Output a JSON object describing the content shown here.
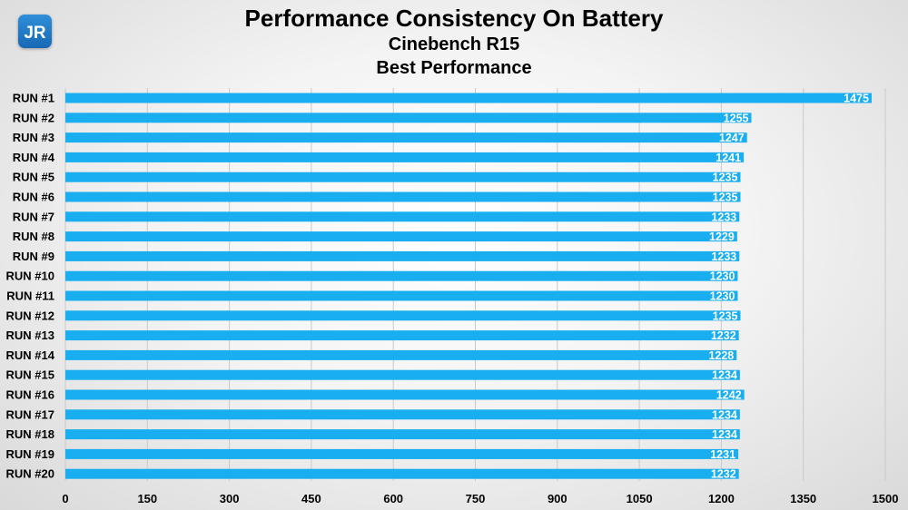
{
  "logo": {
    "text": "JR",
    "accent": "#1b74c4"
  },
  "chart_data": {
    "type": "bar",
    "orientation": "horizontal",
    "title": "Performance Consistency On Battery",
    "subtitle": "Cinebench R15",
    "subtitle2": "Best Performance",
    "categories": [
      "RUN #1",
      "RUN #2",
      "RUN #3",
      "RUN #4",
      "RUN #5",
      "RUN #6",
      "RUN #7",
      "RUN #8",
      "RUN #9",
      "RUN #10",
      "RUN #11",
      "RUN #12",
      "RUN #13",
      "RUN #14",
      "RUN #15",
      "RUN #16",
      "RUN #17",
      "RUN #18",
      "RUN #19",
      "RUN #20"
    ],
    "values": [
      1475,
      1255,
      1247,
      1241,
      1235,
      1235,
      1233,
      1229,
      1233,
      1230,
      1230,
      1235,
      1232,
      1228,
      1234,
      1242,
      1234,
      1234,
      1231,
      1232
    ],
    "xlim": [
      0,
      1500
    ],
    "xticks": [
      0,
      150,
      300,
      450,
      600,
      750,
      900,
      1050,
      1200,
      1350,
      1500
    ],
    "grid": "vertical",
    "bar_color": "#19aef0",
    "label_color": "#ffffff",
    "data_labels": true
  }
}
